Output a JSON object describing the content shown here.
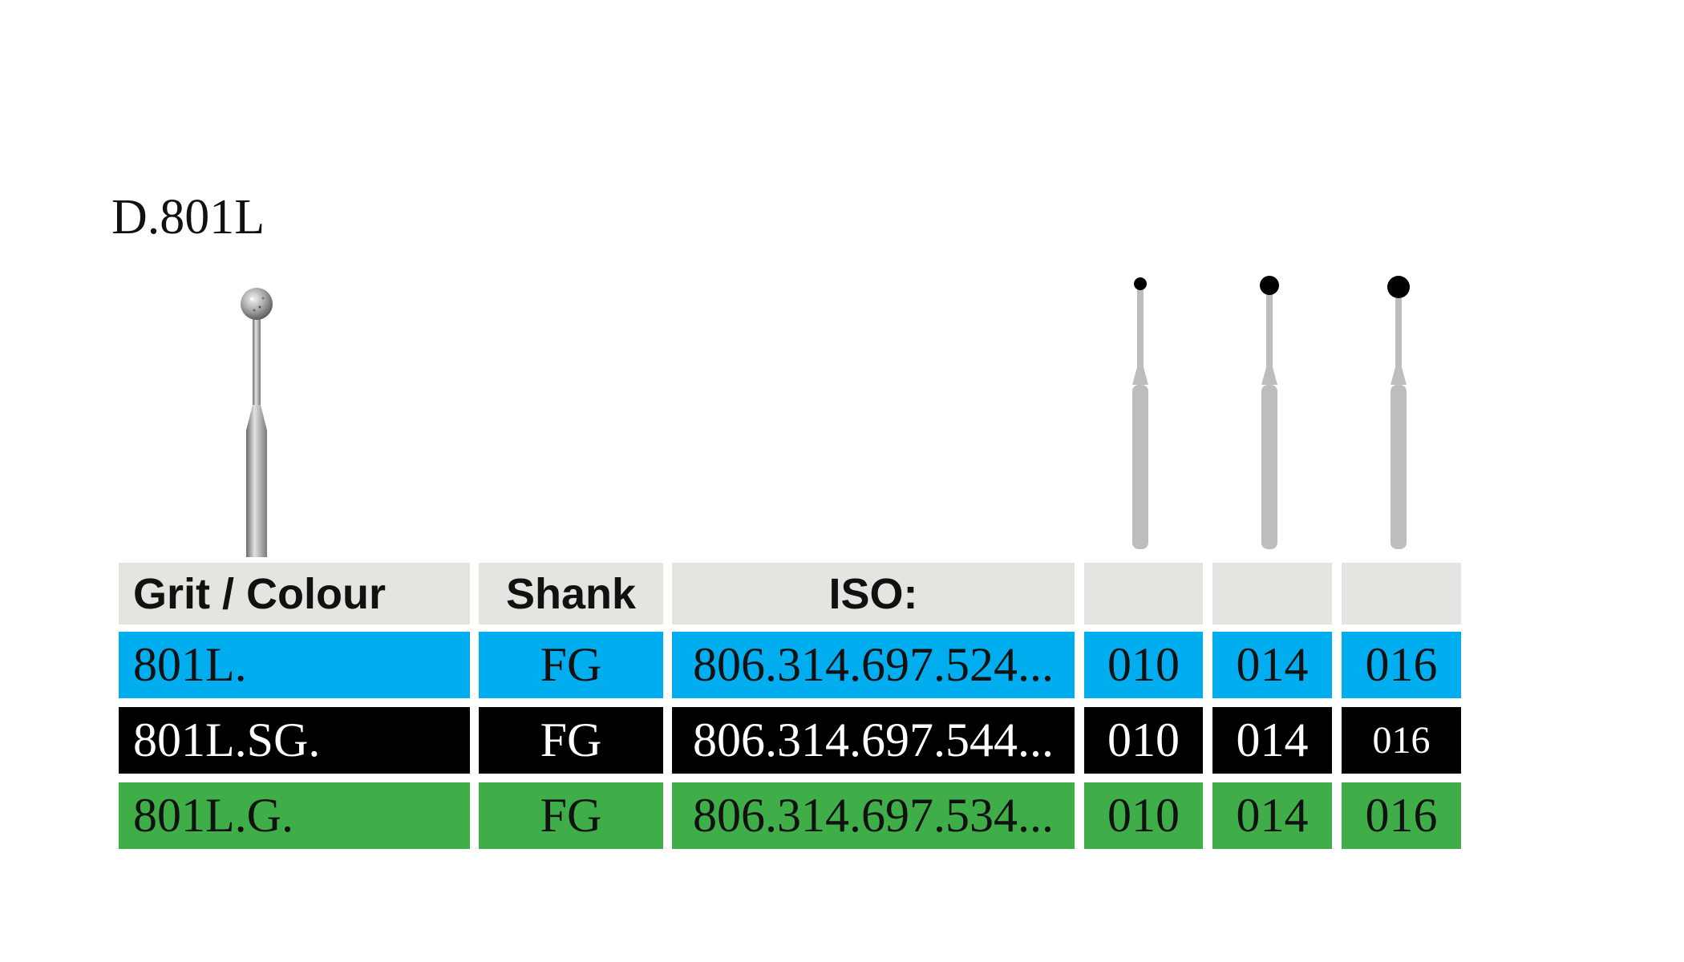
{
  "product": {
    "title": "D.801L"
  },
  "table": {
    "headers": {
      "grit_colour": "Grit / Colour",
      "shank": "Shank",
      "iso": "ISO:",
      "size1": "",
      "size2": "",
      "size3": ""
    },
    "rows": [
      {
        "grit": "801L.",
        "shank": "FG",
        "iso": "806.314.697.524...",
        "sizes": [
          "010",
          "014",
          "016"
        ],
        "color": "#00aeef"
      },
      {
        "grit": "801L.SG.",
        "shank": "FG",
        "iso": "806.314.697.544...",
        "sizes": [
          "010",
          "014",
          "016"
        ],
        "color": "#000000"
      },
      {
        "grit": "801L.G.",
        "shank": "FG",
        "iso": "806.314.697.534...",
        "sizes": [
          "010",
          "014",
          "016"
        ],
        "color": "#3fae49"
      }
    ]
  },
  "icons": {
    "photo": "diamond-ball-bur-icon",
    "size_diagram": "bur-size-silhouette-icon"
  }
}
